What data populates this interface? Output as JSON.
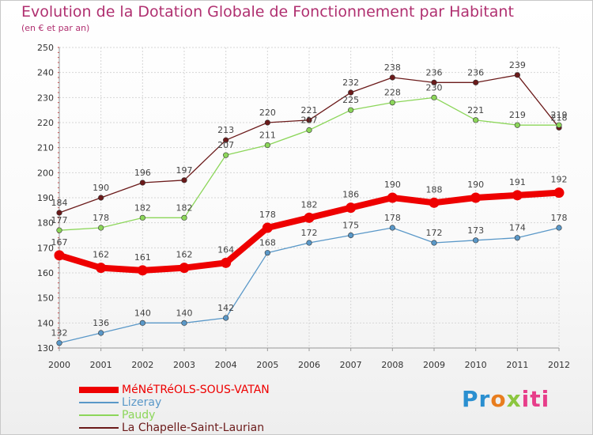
{
  "header": {
    "title": "Evolution de la Dotation Globale de Fonctionnement par Habitant",
    "subtitle": "(en € et par an)"
  },
  "logo": {
    "parts": [
      "Pr",
      "o",
      "x",
      "iti"
    ]
  },
  "chart_data": {
    "type": "line",
    "x": [
      2000,
      2001,
      2002,
      2003,
      2004,
      2005,
      2006,
      2007,
      2008,
      2009,
      2010,
      2011,
      2012
    ],
    "xlim": [
      2000,
      2012
    ],
    "ylim": [
      130,
      250
    ],
    "yticks": [
      130,
      140,
      150,
      160,
      170,
      180,
      190,
      200,
      210,
      220,
      230,
      240,
      250
    ],
    "grid": true,
    "legend_position": "bottom-left",
    "series": [
      {
        "name": "La Chapelle-Saint-Laurian",
        "color": "#6b1a1a",
        "values": [
          184,
          190,
          196,
          197,
          213,
          220,
          221,
          232,
          238,
          236,
          236,
          239,
          218
        ]
      },
      {
        "name": "Paudy",
        "color": "#8cd65a",
        "values": [
          177,
          178,
          182,
          182,
          207,
          211,
          217,
          225,
          228,
          230,
          221,
          219,
          219
        ]
      },
      {
        "name": "Lizeray",
        "color": "#5a98c8",
        "values": [
          132,
          136,
          140,
          140,
          142,
          168,
          172,
          175,
          178,
          172,
          173,
          174,
          178
        ]
      },
      {
        "name": "MéNéTRéOLS-SOUS-VATAN",
        "color": "#ee0000",
        "values": [
          167,
          162,
          161,
          162,
          164,
          178,
          182,
          186,
          190,
          188,
          190,
          191,
          192
        ],
        "bold": true
      }
    ],
    "legend_order": [
      "MéNéTRéOLS-SOUS-VATAN",
      "Lizeray",
      "Paudy",
      "La Chapelle-Saint-Laurian"
    ]
  }
}
